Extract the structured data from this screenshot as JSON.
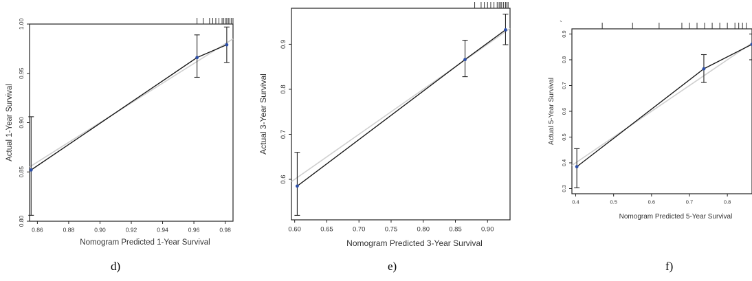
{
  "captions": [
    "d)",
    "e)",
    "f)"
  ],
  "stray_mark": "`",
  "chart_data": [
    {
      "type": "scatter",
      "panel": "d",
      "xlabel": "Nomogram Predicted  1-Year Survival",
      "ylabel": "Actual 1-Year Survival",
      "xlim": [
        0.855,
        0.985
      ],
      "ylim": [
        0.8,
        1.0
      ],
      "xticks": [
        0.86,
        0.88,
        0.9,
        0.92,
        0.94,
        0.96,
        0.98
      ],
      "xtick_labels": [
        "0.86",
        "0.88",
        "0.90",
        "0.92",
        "0.94",
        "0.96",
        "0.98"
      ],
      "yticks": [
        0.8,
        0.85,
        0.9,
        0.95,
        1.0
      ],
      "ytick_labels": [
        "0.80",
        "0.85",
        "0.90",
        "0.95",
        "1.00"
      ],
      "points": [
        {
          "x": 0.856,
          "y": 0.852,
          "lo": 0.806,
          "hi": 0.906
        },
        {
          "x": 0.962,
          "y": 0.966,
          "lo": 0.946,
          "hi": 0.989
        },
        {
          "x": 0.981,
          "y": 0.979,
          "lo": 0.961,
          "hi": 0.997
        }
      ],
      "rug": [
        0.962,
        0.966,
        0.97,
        0.972,
        0.974,
        0.976,
        0.978,
        0.979,
        0.98,
        0.981,
        0.982,
        0.983,
        0.984,
        0.985
      ],
      "grid": false
    },
    {
      "type": "scatter",
      "panel": "e",
      "xlabel": "Nomogram Predicted  3-Year Survival",
      "ylabel": "Actual 3-Year Survival",
      "xlim": [
        0.595,
        0.935
      ],
      "ylim": [
        0.51,
        0.98
      ],
      "xticks": [
        0.6,
        0.65,
        0.7,
        0.75,
        0.8,
        0.85,
        0.9
      ],
      "xtick_labels": [
        "0.60",
        "0.65",
        "0.70",
        "0.75",
        "0.80",
        "0.85",
        "0.90"
      ],
      "yticks": [
        0.6,
        0.7,
        0.8,
        0.9
      ],
      "ytick_labels": [
        "0.6",
        "0.7",
        "0.8",
        "0.9"
      ],
      "points": [
        {
          "x": 0.604,
          "y": 0.585,
          "lo": 0.52,
          "hi": 0.66
        },
        {
          "x": 0.865,
          "y": 0.866,
          "lo": 0.828,
          "hi": 0.909
        },
        {
          "x": 0.928,
          "y": 0.932,
          "lo": 0.899,
          "hi": 0.967
        }
      ],
      "rug": [
        0.88,
        0.89,
        0.895,
        0.9,
        0.905,
        0.91,
        0.915,
        0.918,
        0.92,
        0.922,
        0.925,
        0.928,
        0.93,
        0.932
      ],
      "grid": false
    },
    {
      "type": "scatter",
      "panel": "f",
      "xlabel": "Nomogram Predicted  5-Year Survival",
      "ylabel": "Actual 5-Year Survival",
      "xlim": [
        0.39,
        0.865
      ],
      "ylim": [
        0.28,
        0.92
      ],
      "xticks": [
        0.4,
        0.5,
        0.6,
        0.7,
        0.8
      ],
      "xtick_labels": [
        "0.4",
        "0.5",
        "0.6",
        "0.7",
        "0.8"
      ],
      "yticks": [
        0.3,
        0.4,
        0.5,
        0.6,
        0.7,
        0.8,
        0.9
      ],
      "ytick_labels": [
        "0.3",
        "0.4",
        "0.5",
        "0.6",
        "0.7",
        "0.8",
        "0.9"
      ],
      "points": [
        {
          "x": 0.403,
          "y": 0.385,
          "lo": 0.303,
          "hi": 0.455
        },
        {
          "x": 0.738,
          "y": 0.765,
          "lo": 0.712,
          "hi": 0.82
        },
        {
          "x": 0.865,
          "y": 0.86,
          "lo": 0.8,
          "hi": 0.9
        }
      ],
      "rug": [
        0.47,
        0.55,
        0.62,
        0.68,
        0.7,
        0.72,
        0.74,
        0.76,
        0.78,
        0.8,
        0.82,
        0.83,
        0.84,
        0.85
      ],
      "grid": false
    }
  ]
}
